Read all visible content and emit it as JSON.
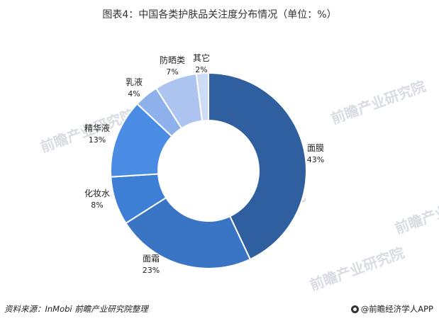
{
  "chart_data": {
    "type": "pie",
    "title": "图表4：中国各类护肤品关注度分布情况（单位：%）",
    "hole": "donut",
    "start": "top",
    "direction": "clockwise",
    "categories": [
      "面膜",
      "面霜",
      "化妆水",
      "精华液",
      "乳液",
      "防晒类",
      "其它"
    ],
    "values": [
      43,
      23,
      8,
      13,
      4,
      7,
      2
    ],
    "value_labels": [
      "43%",
      "23%",
      "8%",
      "13%",
      "4%",
      "7%",
      "2%"
    ],
    "colors": [
      "#2f5f9e",
      "#3a74c4",
      "#3e7fd6",
      "#4a8be4",
      "#8eb0eb",
      "#aec4f0",
      "#cddcf6"
    ]
  },
  "footer": {
    "source": "资料来源：InMobi  前瞻产业研究院整理",
    "brand": "@前瞻经济学人APP"
  },
  "watermark_text": "前瞻产业研究院"
}
